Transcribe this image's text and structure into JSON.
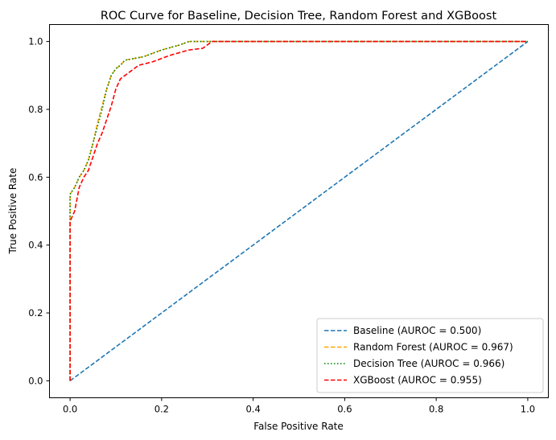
{
  "chart_data": {
    "type": "line",
    "title": "ROC Curve for Baseline, Decision Tree, Random Forest and XGBoost",
    "xlabel": "False Positive Rate",
    "ylabel": "True Positive Rate",
    "xlim": [
      -0.045,
      1.045
    ],
    "ylim": [
      -0.05,
      1.05
    ],
    "xticks": [
      0.0,
      0.2,
      0.4,
      0.6,
      0.8,
      1.0
    ],
    "yticks": [
      0.0,
      0.2,
      0.4,
      0.6,
      0.8,
      1.0
    ],
    "xtick_labels": [
      "0.0",
      "0.2",
      "0.4",
      "0.6",
      "0.8",
      "1.0"
    ],
    "ytick_labels": [
      "0.0",
      "0.2",
      "0.4",
      "0.6",
      "0.8",
      "1.0"
    ],
    "grid": false,
    "legend_position": "lower-right",
    "series": [
      {
        "name": "Baseline (AUROC = 0.500)",
        "color": "#1f77b4",
        "style": "dashed",
        "points": [
          [
            0,
            0
          ],
          [
            1,
            1
          ]
        ]
      },
      {
        "name": "Random Forest (AUROC = 0.967)",
        "color": "#ffa500",
        "style": "dashed",
        "points": [
          [
            0,
            0
          ],
          [
            0,
            0.55
          ],
          [
            0.01,
            0.57
          ],
          [
            0.02,
            0.6
          ],
          [
            0.03,
            0.62
          ],
          [
            0.04,
            0.65
          ],
          [
            0.05,
            0.7
          ],
          [
            0.06,
            0.76
          ],
          [
            0.07,
            0.81
          ],
          [
            0.08,
            0.86
          ],
          [
            0.09,
            0.9
          ],
          [
            0.1,
            0.92
          ],
          [
            0.11,
            0.93
          ],
          [
            0.12,
            0.945
          ],
          [
            0.14,
            0.95
          ],
          [
            0.16,
            0.955
          ],
          [
            0.2,
            0.975
          ],
          [
            0.24,
            0.99
          ],
          [
            0.26,
            1.0
          ],
          [
            0.5,
            1.0
          ],
          [
            1,
            1
          ]
        ]
      },
      {
        "name": "Decision Tree (AUROC = 0.966)",
        "color": "#008000",
        "style": "dotted",
        "points": [
          [
            0,
            0
          ],
          [
            0,
            0.55
          ],
          [
            0.01,
            0.57
          ],
          [
            0.02,
            0.6
          ],
          [
            0.03,
            0.62
          ],
          [
            0.04,
            0.65
          ],
          [
            0.05,
            0.7
          ],
          [
            0.06,
            0.75
          ],
          [
            0.07,
            0.8
          ],
          [
            0.08,
            0.86
          ],
          [
            0.09,
            0.9
          ],
          [
            0.1,
            0.92
          ],
          [
            0.11,
            0.93
          ],
          [
            0.12,
            0.945
          ],
          [
            0.14,
            0.95
          ],
          [
            0.16,
            0.955
          ],
          [
            0.2,
            0.975
          ],
          [
            0.24,
            0.99
          ],
          [
            0.26,
            1.0
          ],
          [
            0.5,
            1.0
          ],
          [
            1,
            1
          ]
        ]
      },
      {
        "name": "XGBoost (AUROC = 0.955)",
        "color": "#ff0000",
        "style": "dashed",
        "points": [
          [
            0,
            0
          ],
          [
            0,
            0.47
          ],
          [
            0.01,
            0.5
          ],
          [
            0.02,
            0.57
          ],
          [
            0.03,
            0.6
          ],
          [
            0.04,
            0.62
          ],
          [
            0.05,
            0.66
          ],
          [
            0.06,
            0.7
          ],
          [
            0.07,
            0.73
          ],
          [
            0.08,
            0.77
          ],
          [
            0.09,
            0.81
          ],
          [
            0.1,
            0.86
          ],
          [
            0.11,
            0.89
          ],
          [
            0.13,
            0.91
          ],
          [
            0.15,
            0.93
          ],
          [
            0.18,
            0.94
          ],
          [
            0.22,
            0.96
          ],
          [
            0.26,
            0.975
          ],
          [
            0.29,
            0.98
          ],
          [
            0.31,
            1.0
          ],
          [
            0.5,
            1.0
          ],
          [
            1,
            1
          ]
        ]
      }
    ]
  }
}
